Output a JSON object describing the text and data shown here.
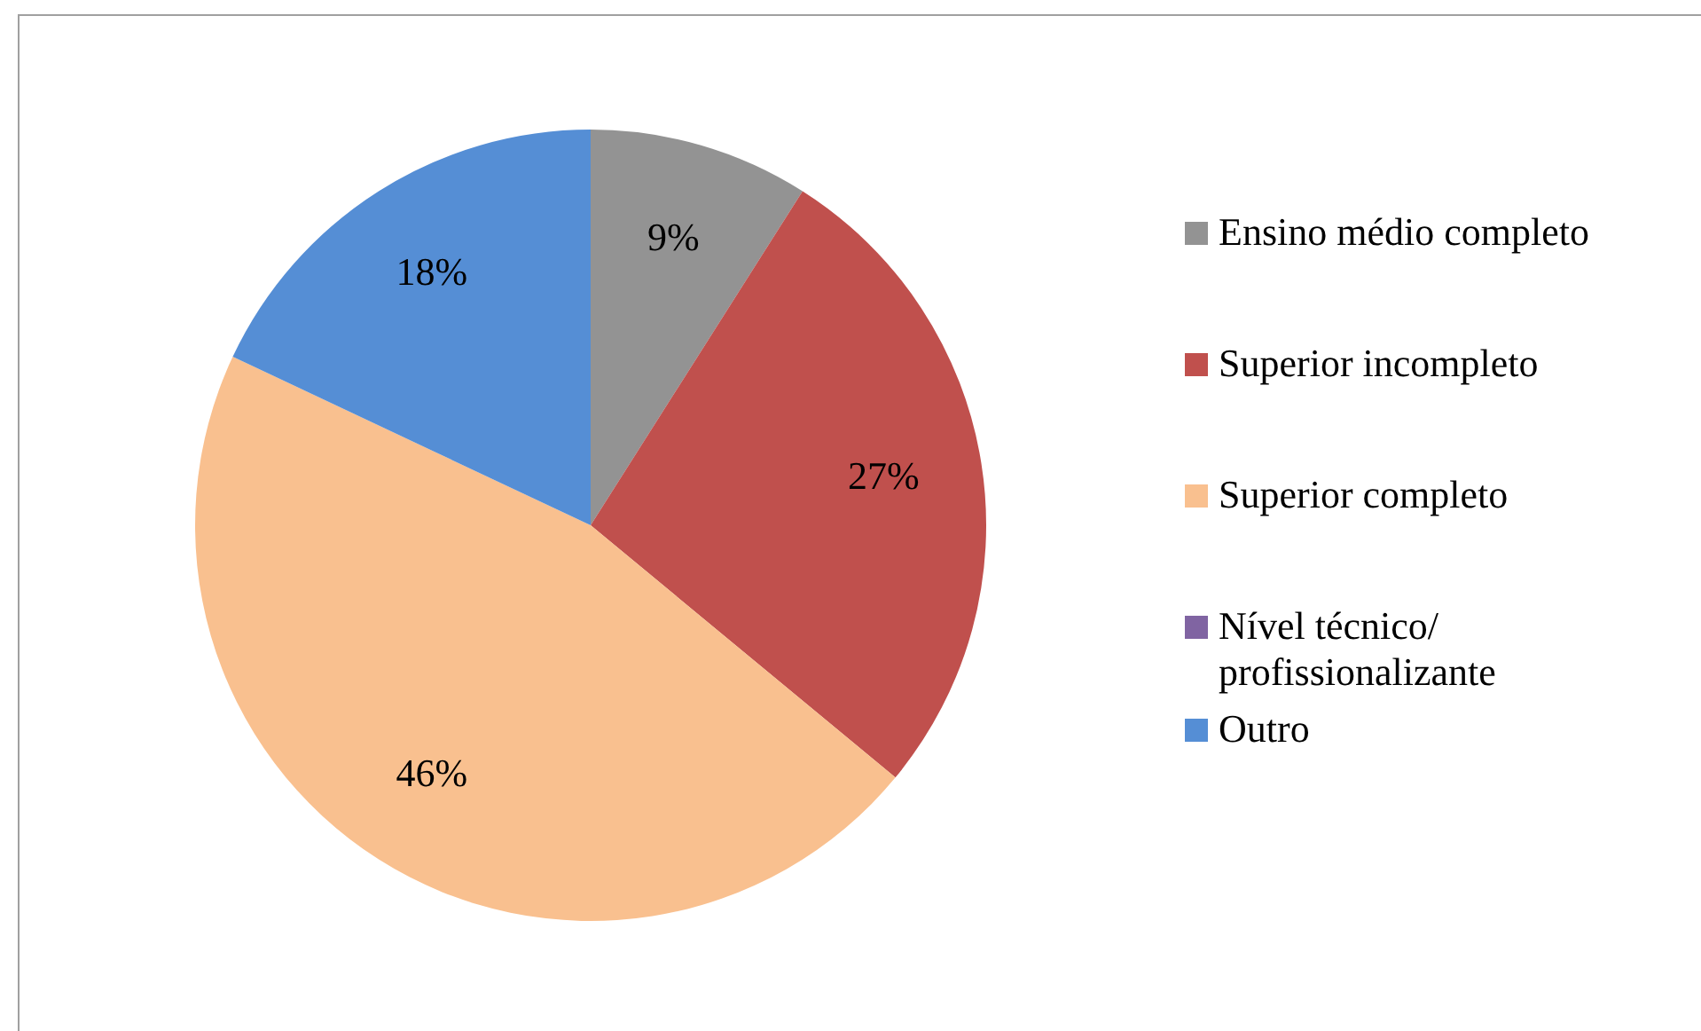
{
  "chart_data": {
    "type": "pie",
    "categories": [
      "Ensino médio completo",
      "Superior incompleto",
      "Superior completo",
      "Nível técnico/ profissionalizante",
      "Outro"
    ],
    "values": [
      9,
      27,
      46,
      0,
      18
    ],
    "colors": [
      "#939393",
      "#c0504d",
      "#f9c08f",
      "#8064a2",
      "#558ed5"
    ],
    "value_labels": [
      "9%",
      "27%",
      "46%",
      null,
      "18%"
    ],
    "legend": "right"
  }
}
